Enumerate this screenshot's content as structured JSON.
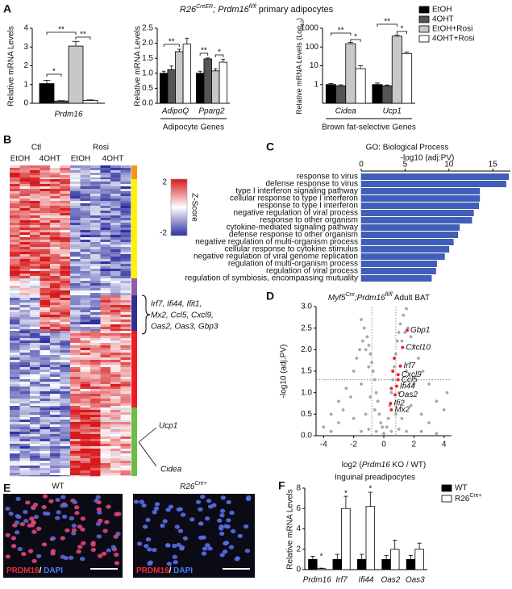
{
  "figure_title": [
    "R26",
    "CreER",
    "; ",
    "Prdm16",
    "fl/fl",
    " primary adipocytes"
  ],
  "panel_labels": [
    "A",
    "B",
    "C",
    "D",
    "E",
    "F"
  ],
  "chart_data": [
    {
      "type": "bar",
      "ylabel": "Relative mRNA Levels",
      "categories": [
        "Prdm16"
      ],
      "ylim": [
        0,
        4
      ],
      "yticks": [
        0,
        1,
        2,
        3,
        4
      ],
      "series": [
        {
          "color": "#000000",
          "values": [
            1.05
          ],
          "errors": [
            0.18
          ]
        },
        {
          "color": "#555555",
          "values": [
            0.12
          ],
          "errors": [
            0.02
          ]
        },
        {
          "color": "#c8c8c8",
          "values": [
            3.05
          ],
          "errors": [
            0.25
          ]
        },
        {
          "color": "#ffffff",
          "values": [
            0.15
          ],
          "errors": [
            0.03
          ]
        }
      ],
      "significance": [
        "*",
        "**",
        "**"
      ]
    },
    {
      "type": "bar",
      "ylabel": "Relative mRNA Levels",
      "categories": [
        "AdipoQ",
        "Pparg2"
      ],
      "group_label": "Adipocyte Genes",
      "ylim": [
        0,
        2.5
      ],
      "yticks": [
        {
          "value": 0,
          "label": "0.0"
        },
        0.5,
        {
          "value": 1,
          "label": "1.0"
        },
        1.5,
        {
          "value": 2,
          "label": "2.0"
        },
        2.5
      ],
      "series": [
        {
          "color": "#000000",
          "values": [
            1.0,
            1.0
          ],
          "errors": [
            0.07,
            0.07
          ]
        },
        {
          "color": "#555555",
          "values": [
            1.12,
            1.48
          ],
          "errors": [
            0.12,
            0.03
          ]
        },
        {
          "color": "#c8c8c8",
          "values": [
            1.72,
            1.08
          ],
          "errors": [
            0.08,
            0.07
          ]
        },
        {
          "color": "#ffffff",
          "values": [
            1.97,
            1.37
          ],
          "errors": [
            0.2,
            0.1
          ]
        }
      ],
      "significance": [
        "**",
        "**",
        "*"
      ]
    },
    {
      "type": "bar",
      "log_scale": true,
      "ylabel": [
        "Relative mRNA Levels (Log",
        "10",
        ")"
      ],
      "categories": [
        "Cidea",
        "Ucp1"
      ],
      "group_label": "Brown fat-selective Genes",
      "ylim": [
        0.1,
        1000
      ],
      "yticks": [
        1,
        10,
        100,
        1000
      ],
      "legend": "upper right",
      "series": [
        {
          "name": "EtOH",
          "color": "#000000",
          "values": [
            1.0,
            1.0
          ],
          "errors": [
            0.15,
            0.2
          ]
        },
        {
          "name": "4OHT",
          "color": "#555555",
          "values": [
            0.85,
            0.85
          ],
          "errors": [
            0.12,
            0.1
          ]
        },
        {
          "name": "EtOH+Rosi",
          "color": "#c8c8c8",
          "values": [
            150,
            380
          ],
          "errors": [
            25,
            60
          ]
        },
        {
          "name": "4OHT+Rosi",
          "color": "#ffffff",
          "values": [
            7,
            45
          ],
          "errors": [
            3,
            8
          ]
        }
      ],
      "significance": [
        "**",
        "*",
        "**",
        "*"
      ]
    },
    {
      "type": "barh",
      "title": "GO: Biological Process",
      "xlabel": "-log10 (adj:PV)",
      "categories": [
        "response to virus",
        "defense response to virus",
        "type I interferon signaling pathway",
        "cellular response to type I interferon",
        "response to type I interferon",
        "negative regulation of viral process",
        "response to other organism",
        "cytokine-mediated signaling pathway",
        "defense response to other organism",
        "negative regulation of multi-organism process",
        "cellular response to cytokine stimulus",
        "negative regulation of viral genome replication",
        "regulation of multi-organism process",
        "regulation of viral process",
        "regulation of symbiosis, encompassing mutuality"
      ],
      "values": [
        16.8,
        16.5,
        13.5,
        13.5,
        13.4,
        12.8,
        12.6,
        11.2,
        11.0,
        10.5,
        10.0,
        9.5,
        8.6,
        8.5,
        8.0
      ],
      "color": "#3f5fbf",
      "xlim": [
        0,
        17
      ],
      "xticks": [
        0,
        5,
        10,
        15
      ]
    },
    {
      "type": "scatter",
      "title": [
        "Myf5",
        "Cre",
        ";Prdm16",
        "fl/fl",
        " Adult BAT"
      ],
      "xlabel": [
        "log2 (",
        "Prdm16",
        " KO / WT)"
      ],
      "ylabel": "-log10 (adj.PV)",
      "xlim": [
        -4.5,
        4.5
      ],
      "ylim": [
        0,
        3
      ],
      "xticks": [
        -4,
        -2,
        0,
        2,
        4
      ],
      "yticks": [
        {
          "value": 0,
          "label": "0.0"
        },
        0.5,
        {
          "value": 1,
          "label": "1.0"
        },
        1.5,
        {
          "value": 2,
          "label": "2.0"
        },
        2.5,
        {
          "value": 3,
          "label": "3.0"
        }
      ],
      "thresholds": {
        "x": [
          -0.8,
          0.8
        ],
        "y": 1.3
      },
      "series": [
        {
          "color": "#a8a8a8",
          "x": [
            -0.2,
            -0.3,
            -0.4,
            -0.5,
            -0.6,
            -0.7,
            -0.8,
            -0.9,
            -1.0,
            -1.1,
            -1.3,
            -1.5,
            -1.2,
            -1.4,
            -1.0,
            -1.6,
            -1.8,
            -2.0,
            -2.5,
            -3.0,
            -3.5,
            -4.0,
            -2.2,
            -1.5,
            -0.9,
            -0.6,
            -1.2,
            -2.0,
            -3.0,
            -2.7,
            0,
            -0.5,
            0.5,
            -1,
            1,
            1.5,
            -1.5,
            2.5,
            3.5,
            -3.5,
            0.2,
            -0.1,
            0.3,
            0.4,
            0.5,
            0.6,
            0.7,
            0.8,
            0.9,
            1.0,
            1.1,
            1.3,
            1.5,
            1.2,
            1.4,
            1.6,
            1.8,
            2.0,
            2.3,
            2.6,
            3.0,
            3.5,
            4.0,
            4.2,
            2.0,
            1.5,
            1.0,
            1.8,
            2.5,
            3.0,
            1.2,
            0.8
          ],
          "values": [
            0.3,
            0.5,
            0.8,
            1.0,
            1.3,
            1.5,
            1.7,
            1.9,
            2.1,
            2.3,
            2.5,
            2.7,
            2.0,
            2.2,
            1.6,
            2.0,
            1.8,
            1.5,
            1.1,
            0.8,
            0.5,
            0.2,
            0.9,
            1.2,
            0.9,
            0.6,
            0.5,
            0.4,
            0.3,
            0.6,
            0.05,
            0.1,
            0.1,
            0.15,
            0.15,
            0.1,
            0.1,
            0.1,
            0.05,
            0.1,
            0.2,
            0.2,
            0.4,
            0.7,
            1.0,
            1.3,
            1.6,
            1.9,
            2.2,
            2.4,
            2.6,
            2.8,
            2.95,
            2.2,
            2.4,
            2.5,
            2.3,
            2.1,
            1.8,
            1.5,
            1.2,
            0.8,
            0.6,
            1.0,
            1.2,
            1.5,
            1.0,
            0.7,
            0.5,
            0.3,
            0.4,
            0.5
          ]
        },
        {
          "color": "#e8252a",
          "x": [
            1.55,
            1.25,
            1.1,
            0.95,
            0.95,
            0.85,
            0.75,
            0.45,
            0.5,
            0.6,
            0.7,
            0.5
          ],
          "values": [
            2.45,
            2.05,
            1.62,
            1.42,
            1.3,
            1.15,
            0.95,
            0.75,
            0.6,
            1.5,
            1.8,
            1.1
          ],
          "labels": [
            "Gbp1",
            "Cxcl10",
            "Irf7",
            "Cxcl9",
            "Ccl5",
            "Ifi44",
            "Oas2",
            "Ifi2",
            "Mx2",
            null,
            null,
            null
          ]
        }
      ]
    },
    {
      "type": "bar",
      "title": "Inguinal preadipocytes",
      "ylabel": "Relative mRNA Levels",
      "categories": [
        "Prdm16",
        "Irf7",
        "Ifi44",
        "Oas2",
        "Oas3"
      ],
      "ylim": [
        0,
        8
      ],
      "yticks": [
        0,
        2,
        4,
        6,
        8
      ],
      "legend": "upper right",
      "series": [
        {
          "name": "WT",
          "color": "#000000",
          "values": [
            1.0,
            1.0,
            1.0,
            1.0,
            1.0
          ],
          "errors": [
            0.3,
            0.5,
            0.5,
            0.4,
            0.4
          ]
        },
        {
          "name": [
            "R26",
            "Cre+"
          ],
          "color": "#ffffff",
          "values": [
            0.1,
            6.0,
            6.2,
            2.0,
            2.0
          ],
          "errors": [
            0.05,
            1.2,
            1.4,
            0.9,
            0.6
          ]
        }
      ],
      "significance": [
        "*",
        "*",
        "*"
      ]
    }
  ],
  "heatmap": {
    "column_groups": [
      "Ctl",
      "Rosi"
    ],
    "columns": [
      "EtOH",
      "4OHT",
      "EtOH",
      "4OHT"
    ],
    "zlim": [
      -2,
      2
    ],
    "colorbar_title": "Z-Score",
    "gene_callout": [
      "Irf7, Ifi44, Ifit1,",
      "Mx2, Ccl5, Cxcl9,",
      "Oas2, Oas3, Gbp3"
    ],
    "genes": [
      "Ucp1",
      "Cidea"
    ]
  },
  "images": {
    "labels": [
      "WT",
      [
        "R26",
        "Cre+"
      ]
    ],
    "stain": [
      "PRDM16",
      "/ ",
      "DAPI"
    ]
  }
}
